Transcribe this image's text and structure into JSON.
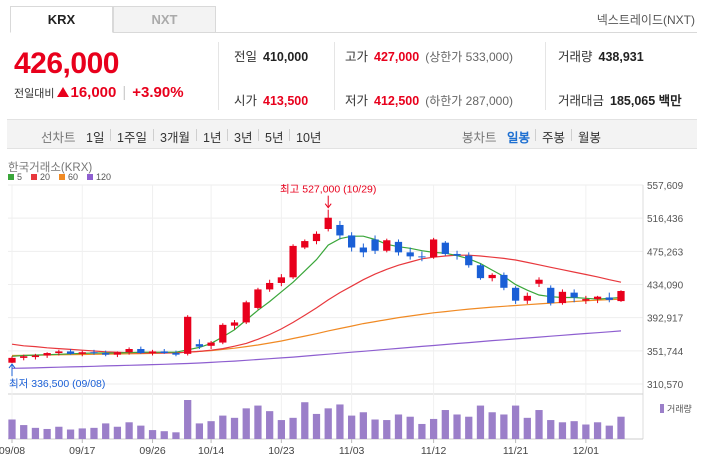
{
  "tabs": [
    {
      "label": "KRX",
      "active": true
    },
    {
      "label": "NXT",
      "active": false
    }
  ],
  "nxt_link": "넥스트레이드(NXT)",
  "current_price": "426,000",
  "change": {
    "label": "전일대비",
    "amount": "16,000",
    "percent": "+3.90%"
  },
  "stats": {
    "prev_close": {
      "label": "전일",
      "value": "410,000"
    },
    "high": {
      "label": "고가",
      "value": "427,000",
      "sub": "(상한가 533,000)"
    },
    "volume": {
      "label": "거래량",
      "value": "438,931"
    },
    "open": {
      "label": "시가",
      "value": "413,500"
    },
    "low": {
      "label": "저가",
      "value": "412,500",
      "sub": "(하한가 287,000)"
    },
    "trade_value": {
      "label": "거래대금",
      "value": "185,065 백만"
    }
  },
  "toolbar": {
    "line_chart": "선차트",
    "periods": [
      "1일",
      "1주일",
      "3개월",
      "1년",
      "3년",
      "5년",
      "10년"
    ],
    "candle_chart": "봉차트",
    "candle_periods": [
      "일봉",
      "주봉",
      "월봉"
    ],
    "selected_candle": "일봉"
  },
  "colors": {
    "up": "#e8001c",
    "down": "#1a5fd6",
    "ma5": "#3aa63a",
    "ma20": "#e8383d",
    "ma60": "#f08a24",
    "ma120": "#8e5fd0",
    "volume": "#9b7fc9",
    "selected": "#1d6fd1"
  },
  "chart_data": {
    "type": "candlestick",
    "market_label": "한국거래소(KRX)",
    "legend": [
      {
        "name": "5",
        "color": "#3aa63a"
      },
      {
        "name": "20",
        "color": "#e8383d"
      },
      {
        "name": "60",
        "color": "#f08a24"
      },
      {
        "name": "120",
        "color": "#8e5fd0"
      }
    ],
    "y_ticks": [
      310570,
      351744,
      392917,
      434090,
      475263,
      516436,
      557609
    ],
    "y_tick_labels": [
      "310,570",
      "351,744",
      "392,917",
      "434,090",
      "475,263",
      "516,436",
      "557,609"
    ],
    "ylim": [
      310570,
      557609
    ],
    "x_labels": [
      {
        "label": "09/08",
        "index": 0
      },
      {
        "label": "09/17",
        "index": 6
      },
      {
        "label": "09/26",
        "index": 12
      },
      {
        "label": "10/14",
        "index": 17
      },
      {
        "label": "10/23",
        "index": 23
      },
      {
        "label": "11/03",
        "index": 29
      },
      {
        "label": "11/12",
        "index": 36
      },
      {
        "label": "11/21",
        "index": 43
      },
      {
        "label": "12/01",
        "index": 49
      }
    ],
    "annotations": {
      "high": {
        "text": "최고 527,000 (10/29)",
        "index": 27,
        "value": 527000
      },
      "low": {
        "text": "최저 336,500 (09/08)",
        "index": 0,
        "value": 336500
      }
    },
    "volume_label": "거래량",
    "candles": [
      {
        "o": 337000,
        "h": 345000,
        "l": 336500,
        "c": 343000
      },
      {
        "o": 343000,
        "h": 347000,
        "l": 340000,
        "c": 345000
      },
      {
        "o": 344000,
        "h": 348000,
        "l": 341000,
        "c": 346000
      },
      {
        "o": 346000,
        "h": 350000,
        "l": 343000,
        "c": 349000
      },
      {
        "o": 349000,
        "h": 353000,
        "l": 346000,
        "c": 351000
      },
      {
        "o": 351000,
        "h": 354000,
        "l": 347000,
        "c": 348000
      },
      {
        "o": 348000,
        "h": 352000,
        "l": 345000,
        "c": 350000
      },
      {
        "o": 350000,
        "h": 353000,
        "l": 347000,
        "c": 349000
      },
      {
        "o": 349000,
        "h": 352000,
        "l": 345000,
        "c": 347000
      },
      {
        "o": 347000,
        "h": 351000,
        "l": 344000,
        "c": 350000
      },
      {
        "o": 350000,
        "h": 356000,
        "l": 347000,
        "c": 354000
      },
      {
        "o": 354000,
        "h": 357000,
        "l": 348000,
        "c": 349000
      },
      {
        "o": 349000,
        "h": 353000,
        "l": 346000,
        "c": 351000
      },
      {
        "o": 351000,
        "h": 354000,
        "l": 348000,
        "c": 349000
      },
      {
        "o": 349000,
        "h": 352000,
        "l": 345000,
        "c": 347000
      },
      {
        "o": 348000,
        "h": 396000,
        "l": 346000,
        "c": 394000
      },
      {
        "o": 360000,
        "h": 366000,
        "l": 354000,
        "c": 357000
      },
      {
        "o": 358000,
        "h": 364000,
        "l": 354000,
        "c": 362000
      },
      {
        "o": 362000,
        "h": 386000,
        "l": 360000,
        "c": 384000
      },
      {
        "o": 383000,
        "h": 390000,
        "l": 378000,
        "c": 387000
      },
      {
        "o": 387000,
        "h": 414000,
        "l": 385000,
        "c": 412000
      },
      {
        "o": 405000,
        "h": 430000,
        "l": 403000,
        "c": 428000
      },
      {
        "o": 428000,
        "h": 440000,
        "l": 425000,
        "c": 436000
      },
      {
        "o": 436000,
        "h": 447000,
        "l": 432000,
        "c": 443000
      },
      {
        "o": 443000,
        "h": 484000,
        "l": 441000,
        "c": 482000
      },
      {
        "o": 480000,
        "h": 490000,
        "l": 478000,
        "c": 488000
      },
      {
        "o": 488000,
        "h": 500000,
        "l": 484000,
        "c": 497000
      },
      {
        "o": 503000,
        "h": 527000,
        "l": 500000,
        "c": 517000
      },
      {
        "o": 508000,
        "h": 513000,
        "l": 490000,
        "c": 495000
      },
      {
        "o": 495000,
        "h": 499000,
        "l": 475000,
        "c": 480000
      },
      {
        "o": 480000,
        "h": 485000,
        "l": 468000,
        "c": 474000
      },
      {
        "o": 490000,
        "h": 495000,
        "l": 472000,
        "c": 476000
      },
      {
        "o": 476000,
        "h": 491000,
        "l": 474000,
        "c": 489000
      },
      {
        "o": 487000,
        "h": 490000,
        "l": 470000,
        "c": 474000
      },
      {
        "o": 474000,
        "h": 480000,
        "l": 465000,
        "c": 469000
      },
      {
        "o": 469000,
        "h": 475000,
        "l": 463000,
        "c": 468000
      },
      {
        "o": 468000,
        "h": 492000,
        "l": 466000,
        "c": 490000
      },
      {
        "o": 486000,
        "h": 488000,
        "l": 470000,
        "c": 472000
      },
      {
        "o": 472000,
        "h": 476000,
        "l": 465000,
        "c": 470000
      },
      {
        "o": 470000,
        "h": 474000,
        "l": 455000,
        "c": 458000
      },
      {
        "o": 458000,
        "h": 460000,
        "l": 440000,
        "c": 442000
      },
      {
        "o": 442000,
        "h": 448000,
        "l": 438000,
        "c": 446000
      },
      {
        "o": 446000,
        "h": 449000,
        "l": 427000,
        "c": 430000
      },
      {
        "o": 430000,
        "h": 432000,
        "l": 410000,
        "c": 414000
      },
      {
        "o": 414000,
        "h": 424000,
        "l": 410000,
        "c": 420000
      },
      {
        "o": 435000,
        "h": 443000,
        "l": 431000,
        "c": 440000
      },
      {
        "o": 430000,
        "h": 433000,
        "l": 408000,
        "c": 411000
      },
      {
        "o": 411000,
        "h": 428000,
        "l": 409000,
        "c": 425000
      },
      {
        "o": 424000,
        "h": 428000,
        "l": 412000,
        "c": 418000
      },
      {
        "o": 414000,
        "h": 420000,
        "l": 410000,
        "c": 416000
      },
      {
        "o": 416000,
        "h": 420000,
        "l": 411000,
        "c": 419000
      },
      {
        "o": 418000,
        "h": 424000,
        "l": 412000,
        "c": 415000
      },
      {
        "o": 413500,
        "h": 427000,
        "l": 412500,
        "c": 426000
      }
    ],
    "volumes": [
      35,
      25,
      20,
      18,
      22,
      17,
      19,
      20,
      28,
      22,
      30,
      24,
      16,
      14,
      12,
      70,
      28,
      32,
      42,
      38,
      55,
      60,
      50,
      34,
      38,
      66,
      45,
      55,
      62,
      42,
      48,
      35,
      34,
      44,
      40,
      27,
      36,
      52,
      44,
      40,
      60,
      48,
      44,
      60,
      38,
      52,
      34,
      30,
      32,
      26,
      30,
      24,
      40
    ],
    "ma": {
      "ma5": [
        345000,
        346000,
        346500,
        347000,
        347500,
        348000,
        348500,
        349000,
        349000,
        349000,
        349500,
        350000,
        350000,
        350000,
        350000,
        353000,
        356000,
        361000,
        369000,
        378000,
        390000,
        402000,
        413000,
        425000,
        437000,
        451000,
        465000,
        483000,
        491000,
        494000,
        494000,
        490000,
        484000,
        481000,
        479000,
        476000,
        474000,
        473000,
        470000,
        466000,
        460000,
        452000,
        444000,
        434000,
        427000,
        421000,
        419000,
        418000,
        418000,
        417000,
        416000,
        417000,
        418000
      ],
      "ma20": [
        360000,
        358000,
        357000,
        355500,
        354500,
        353500,
        352500,
        351500,
        350500,
        350000,
        349500,
        349200,
        349000,
        349000,
        349200,
        350000,
        351000,
        352500,
        354500,
        357500,
        361000,
        366000,
        372000,
        379000,
        387000,
        396000,
        405000,
        415000,
        424000,
        432000,
        440000,
        447000,
        453000,
        458000,
        462000,
        466000,
        468000,
        469500,
        470500,
        470500,
        469500,
        468000,
        466500,
        464500,
        461500,
        458500,
        455500,
        452500,
        449500,
        446500,
        443500,
        440000,
        437000
      ],
      "ma60": [
        346000,
        346200,
        346400,
        346600,
        346800,
        347000,
        347200,
        347400,
        347600,
        347800,
        348000,
        348300,
        348600,
        349000,
        349400,
        350000,
        351000,
        352000,
        353500,
        355000,
        357000,
        359000,
        361500,
        364000,
        367000,
        370000,
        373000,
        376500,
        379500,
        382500,
        385500,
        388000,
        390500,
        393000,
        395000,
        397000,
        399000,
        400500,
        402000,
        403500,
        404800,
        406000,
        407000,
        408000,
        409000,
        410000,
        411000,
        412000,
        413000,
        413800,
        414600,
        415300,
        416000
      ],
      "ma120": [
        330000,
        330300,
        330600,
        331000,
        331400,
        331800,
        332200,
        332600,
        333000,
        333400,
        333800,
        334200,
        334600,
        335000,
        335500,
        336000,
        336700,
        337400,
        338200,
        339000,
        340000,
        341000,
        342000,
        343000,
        344000,
        345200,
        346400,
        347600,
        348800,
        350000,
        351200,
        352400,
        353600,
        354800,
        356000,
        357200,
        358400,
        359600,
        360800,
        362000,
        363200,
        364400,
        365500,
        366600,
        367700,
        368800,
        369900,
        371000,
        372100,
        373200,
        374300,
        375400,
        376500
      ]
    }
  }
}
